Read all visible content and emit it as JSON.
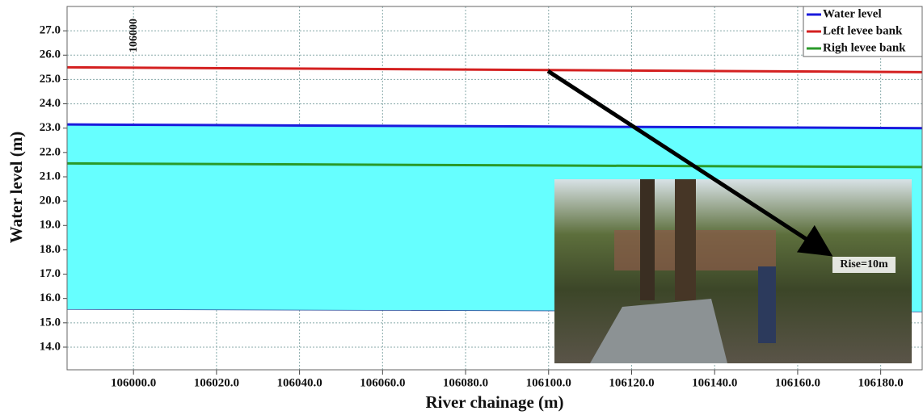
{
  "chart_data": {
    "type": "line",
    "x_label": "River chainage (m)",
    "y_label": "Water level (m)",
    "x": [
      105984,
      106190
    ],
    "series": [
      {
        "name": "Water level",
        "color": "#1a1adc",
        "values": [
          23.15,
          23.0
        ]
      },
      {
        "name": "Left levee bank",
        "color": "#d42020",
        "values": [
          25.5,
          25.3
        ]
      },
      {
        "name": "Righ levee bank",
        "color": "#2a9a2a",
        "values": [
          21.55,
          21.4
        ]
      }
    ],
    "water_area": {
      "color": "#66ffff",
      "bed_values": [
        15.55,
        15.45
      ]
    },
    "xlim": [
      105984,
      106190
    ],
    "ylim": [
      13.07,
      28.0
    ],
    "xticks": [
      {
        "value": 106000,
        "label": "106000.0"
      },
      {
        "value": 106020,
        "label": "106020.0"
      },
      {
        "value": 106040,
        "label": "106040.0"
      },
      {
        "value": 106060,
        "label": "106060.0"
      },
      {
        "value": 106080,
        "label": "106080.0"
      },
      {
        "value": 106100,
        "label": "106100.0"
      },
      {
        "value": 106120,
        "label": "106120.0"
      },
      {
        "value": 106140,
        "label": "106140.0"
      },
      {
        "value": 106160,
        "label": "106160.0"
      },
      {
        "value": 106180,
        "label": "106180.0"
      }
    ],
    "yticks": [
      {
        "value": 14,
        "label": "14.0"
      },
      {
        "value": 15,
        "label": "15.0"
      },
      {
        "value": 16,
        "label": "16.0"
      },
      {
        "value": 17,
        "label": "17.0"
      },
      {
        "value": 18,
        "label": "18.0"
      },
      {
        "value": 19,
        "label": "19.0"
      },
      {
        "value": 20,
        "label": "20.0"
      },
      {
        "value": 21,
        "label": "21.0"
      },
      {
        "value": 22,
        "label": "22.0"
      },
      {
        "value": 23,
        "label": "23.0"
      },
      {
        "value": 24,
        "label": "24.0"
      },
      {
        "value": 25,
        "label": "25.0"
      },
      {
        "value": 26,
        "label": "26.0"
      },
      {
        "value": 27,
        "label": "27.0"
      }
    ],
    "grid": true,
    "annotations": [
      "106000",
      "Rise=10m"
    ]
  }
}
